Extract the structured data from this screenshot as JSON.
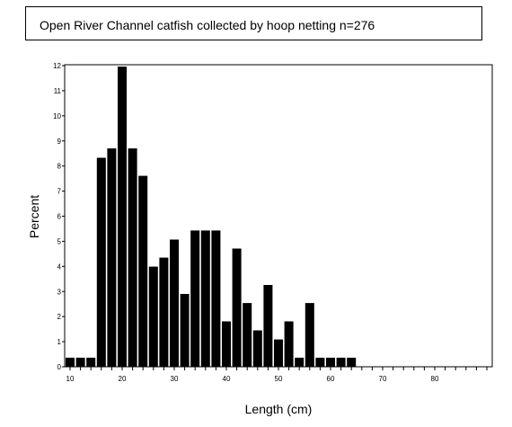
{
  "chart_data": {
    "type": "bar",
    "title": "Open River Channel catfish collected by hoop netting n=276",
    "xlabel": "Length (cm)",
    "ylabel": "Percent",
    "xlim": [
      10,
      90
    ],
    "ylim": [
      0,
      12
    ],
    "x_tick_labels": [
      "10",
      "20",
      "30",
      "40",
      "50",
      "60",
      "70",
      "80"
    ],
    "y_tick_labels": [
      "0",
      "1",
      "2",
      "3",
      "4",
      "5",
      "6",
      "7",
      "8",
      "9",
      "10",
      "11",
      "12"
    ],
    "x": [
      10,
      12,
      14,
      16,
      18,
      20,
      22,
      24,
      26,
      28,
      30,
      32,
      34,
      36,
      38,
      40,
      42,
      44,
      46,
      48,
      50,
      52,
      54,
      56,
      58,
      60,
      62,
      64
    ],
    "values": [
      0.36,
      0.36,
      0.36,
      8.33,
      8.7,
      11.96,
      8.7,
      7.61,
      3.99,
      4.35,
      5.07,
      2.9,
      5.43,
      5.43,
      5.43,
      1.81,
      4.71,
      2.54,
      1.45,
      3.26,
      1.09,
      1.81,
      0.36,
      2.54,
      0.36,
      0.36,
      0.36,
      0.36
    ],
    "grid": false,
    "legend": "none"
  }
}
